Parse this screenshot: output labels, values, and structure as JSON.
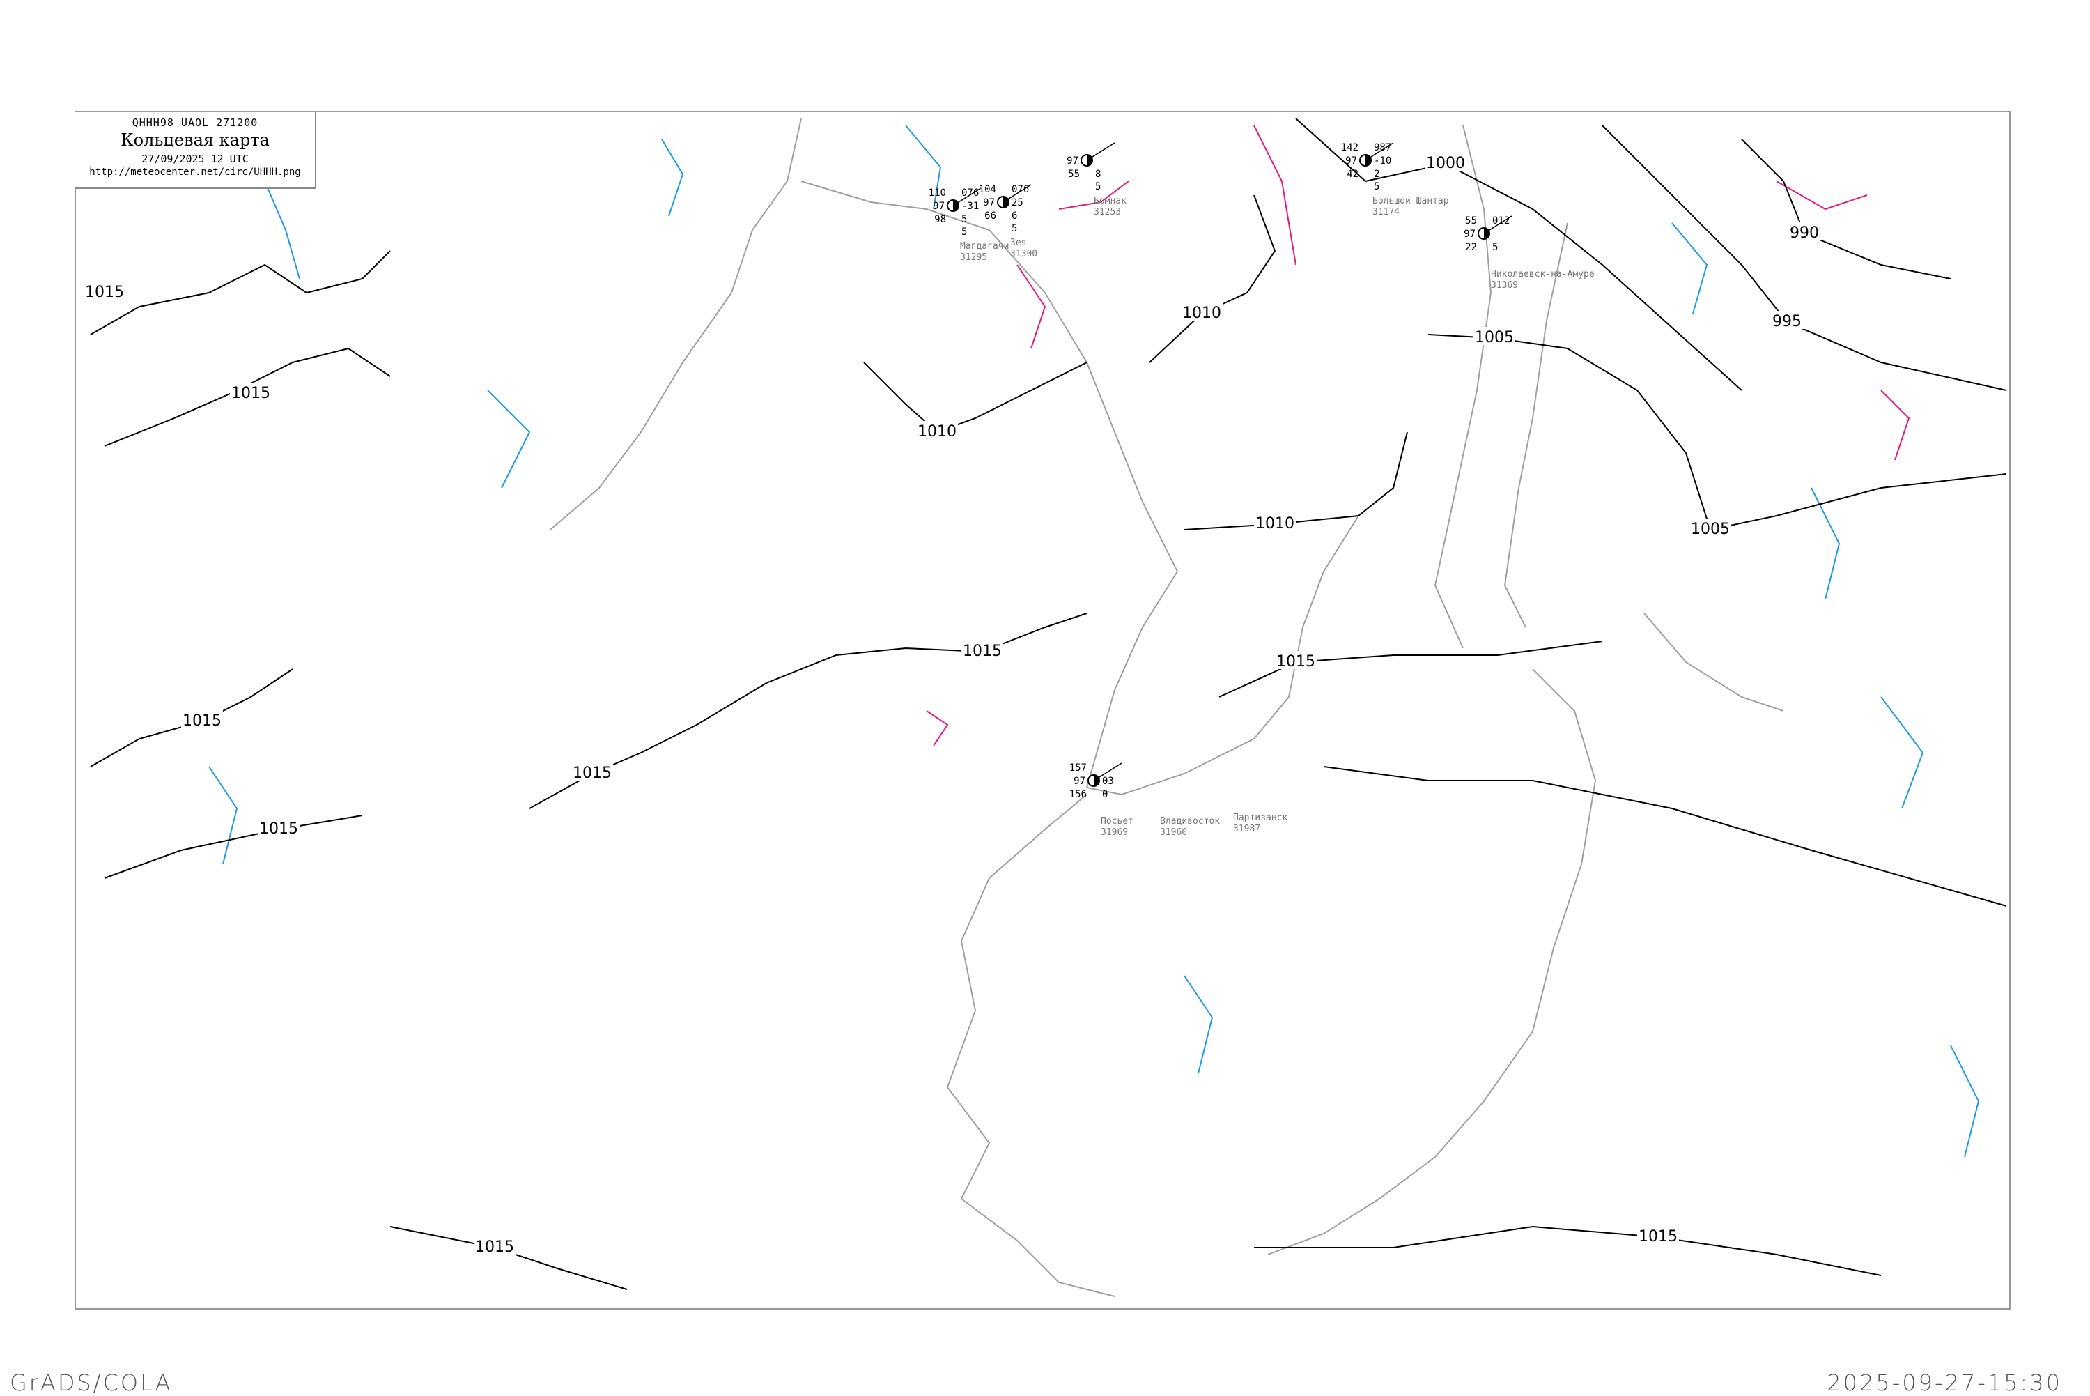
{
  "header": {
    "code": "QHHH98   UAOL   271200",
    "title": "Кольцевая карта",
    "date": "27/09/2025 12 UTC",
    "url": "http://meteocenter.net/circ/UHHH.png"
  },
  "footer": {
    "left": "GrADS/COLA",
    "right": "2025-09-27-15:30"
  },
  "colors": {
    "isobar": "#000000",
    "coastline": "#a0a0a0",
    "cold_isallobar": "#1e9be6",
    "warm_isallobar": "#e6197d",
    "precip_marker": "#22c03a",
    "station_name": "#777777"
  },
  "isobar_labels": [
    "1015",
    "1015",
    "1015",
    "1015",
    "1015",
    "1015",
    "1010",
    "1010",
    "1010",
    "1015",
    "1000",
    "990",
    "995",
    "1005",
    "1005",
    "1015",
    "1015"
  ],
  "stations": [
    {
      "name": "Магдагачи",
      "id": "31295",
      "tl": "110",
      "ml": "97",
      "bl": "98",
      "tr": "076",
      "mr": "-31",
      "r2": "5",
      "r3": "5"
    },
    {
      "name": "Зея",
      "id": "31300",
      "tl": "104",
      "ml": "97",
      "bl": "66",
      "tr": "076",
      "mr": "25",
      "r2": "6",
      "r3": "5"
    },
    {
      "name": "Бомнак",
      "id": "31253",
      "tl": "",
      "ml": "97",
      "bl": "55",
      "tr": "",
      "mr": "",
      "r2": "8",
      "r3": "5"
    },
    {
      "name": "Большой Шантар",
      "id": "31174",
      "tl": "142",
      "ml": "97",
      "bl": "42",
      "tr": "987",
      "mr": "-10",
      "r2": "2",
      "r3": "5"
    },
    {
      "name": "Николаевск-на-Амуре",
      "id": "31369",
      "tl": "55",
      "ml": "97",
      "bl": "22",
      "tr": "012",
      "mr": "",
      "r2": "5",
      "r3": ""
    },
    {
      "name": "Посьет",
      "id": "31969",
      "tl": "157",
      "ml": "97",
      "bl": "156",
      "tr": "",
      "mr": "03",
      "r2": "0",
      "r3": ""
    },
    {
      "name": "Владивосток",
      "id": "31960",
      "tl": "",
      "ml": "",
      "bl": "",
      "tr": "",
      "mr": "",
      "r2": "",
      "r3": ""
    },
    {
      "name": "Партизанск",
      "id": "31987",
      "tl": "",
      "ml": "",
      "bl": "",
      "tr": "",
      "mr": "",
      "r2": "",
      "r3": ""
    }
  ]
}
